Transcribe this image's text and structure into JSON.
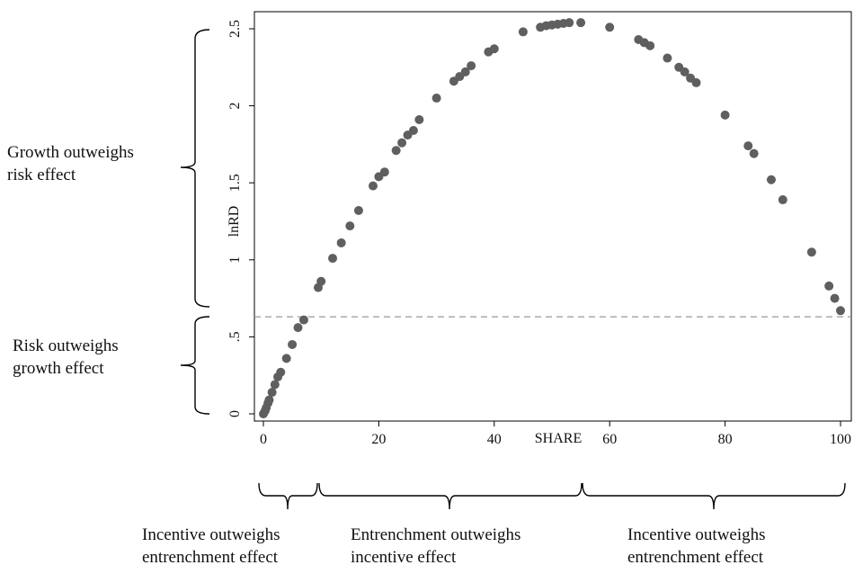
{
  "chart_data": {
    "type": "scatter",
    "title": "",
    "xlabel": "SHARE",
    "ylabel": "lnRD",
    "xlim": [
      0,
      100
    ],
    "ylim": [
      0,
      2.5
    ],
    "x_ticks": [
      "0",
      "20",
      "40",
      "60",
      "80",
      "100"
    ],
    "y_ticks": [
      "0",
      ".5",
      "1",
      "1.5",
      "2",
      "2.5"
    ],
    "reference_line": {
      "y": 0.63,
      "style": "dashed",
      "color": "#9a9a9a"
    },
    "marker_color": "#5f5f5f",
    "points": [
      [
        0,
        0.0
      ],
      [
        0.3,
        0.02
      ],
      [
        0.5,
        0.04
      ],
      [
        0.8,
        0.07
      ],
      [
        1.0,
        0.09
      ],
      [
        1.5,
        0.14
      ],
      [
        2.0,
        0.19
      ],
      [
        2.5,
        0.24
      ],
      [
        3.0,
        0.27
      ],
      [
        4.0,
        0.36
      ],
      [
        5.0,
        0.45
      ],
      [
        6.0,
        0.56
      ],
      [
        7.0,
        0.61
      ],
      [
        9.5,
        0.82
      ],
      [
        10.0,
        0.86
      ],
      [
        12.0,
        1.01
      ],
      [
        13.5,
        1.11
      ],
      [
        15.0,
        1.22
      ],
      [
        16.5,
        1.32
      ],
      [
        19.0,
        1.48
      ],
      [
        20.0,
        1.54
      ],
      [
        21.0,
        1.57
      ],
      [
        23.0,
        1.71
      ],
      [
        24.0,
        1.76
      ],
      [
        25.0,
        1.81
      ],
      [
        26.0,
        1.84
      ],
      [
        27.0,
        1.91
      ],
      [
        30.0,
        2.05
      ],
      [
        33.0,
        2.16
      ],
      [
        34.0,
        2.19
      ],
      [
        35.0,
        2.22
      ],
      [
        36.0,
        2.26
      ],
      [
        39.0,
        2.35
      ],
      [
        40.0,
        2.37
      ],
      [
        45.0,
        2.48
      ],
      [
        48.0,
        2.51
      ],
      [
        49.0,
        2.52
      ],
      [
        50.0,
        2.525
      ],
      [
        51.0,
        2.53
      ],
      [
        52.0,
        2.535
      ],
      [
        53.0,
        2.54
      ],
      [
        55.0,
        2.54
      ],
      [
        60.0,
        2.51
      ],
      [
        65.0,
        2.43
      ],
      [
        66.0,
        2.41
      ],
      [
        67.0,
        2.39
      ],
      [
        70.0,
        2.31
      ],
      [
        72.0,
        2.25
      ],
      [
        73.0,
        2.22
      ],
      [
        74.0,
        2.18
      ],
      [
        75.0,
        2.15
      ],
      [
        80.0,
        1.94
      ],
      [
        84.0,
        1.74
      ],
      [
        85.0,
        1.69
      ],
      [
        88.0,
        1.52
      ],
      [
        90.0,
        1.39
      ],
      [
        95.0,
        1.05
      ],
      [
        98.0,
        0.83
      ],
      [
        99.0,
        0.75
      ],
      [
        100.0,
        0.67
      ]
    ]
  },
  "annotations": {
    "left": [
      {
        "line1": "Growth outweighs",
        "line2": "risk effect"
      },
      {
        "line1": "Risk outweighs",
        "line2": "growth effect"
      }
    ],
    "bottom": [
      {
        "line1": "Incentive outweighs",
        "line2": "entrenchment effect"
      },
      {
        "line1": "Entrenchment outweighs",
        "line2": "incentive effect"
      },
      {
        "line1": "Incentive outweighs",
        "line2": "entrenchment effect"
      }
    ]
  }
}
